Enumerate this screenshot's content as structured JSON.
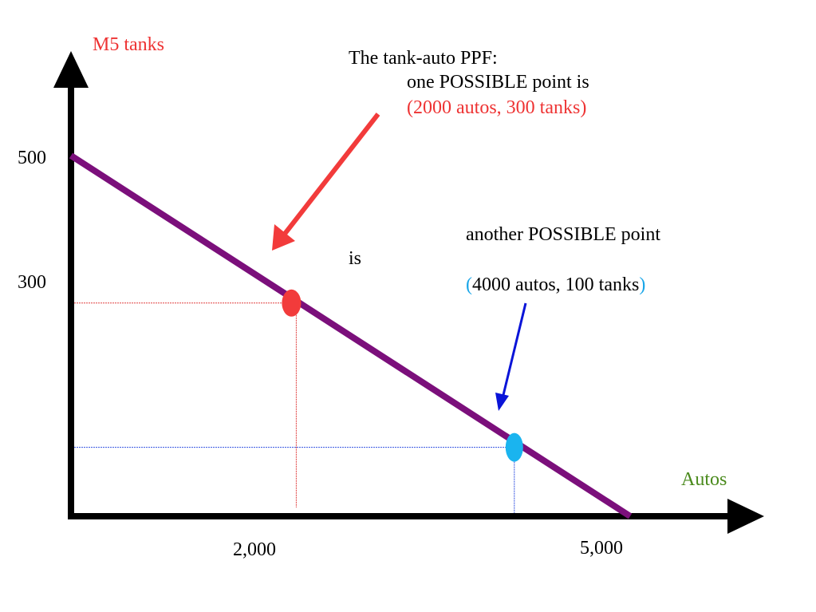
{
  "colors": {
    "ppf_line": "#7b0f7b",
    "axes": "#000000",
    "point1": "#f23b3b",
    "point2": "#1ab4ef",
    "red_text": "#ee3333",
    "blue_arrow": "#0a14d8",
    "cyan_text": "#1aa6e8",
    "autos_label": "#4a8a1c",
    "red_guide": "#e04040",
    "blue_guide": "#3050e0"
  },
  "chart_data": {
    "type": "line",
    "xlabel": "Autos",
    "ylabel": "M5 tanks",
    "x_ticks": [
      {
        "value": 2000,
        "label": "2,000"
      },
      {
        "value": 5000,
        "label": "5,000"
      }
    ],
    "y_ticks": [
      {
        "value": 500,
        "label": "500"
      },
      {
        "value": 300,
        "label": "300"
      }
    ],
    "series": [
      {
        "points": [
          {
            "x": 0,
            "y": 500
          },
          {
            "x": 5000,
            "y": 0
          }
        ]
      }
    ],
    "highlighted_points": [
      {
        "x": 2000,
        "y": 300,
        "color": "#f23b3b"
      },
      {
        "x": 4000,
        "y": 100,
        "color": "#1ab4ef"
      }
    ],
    "annotations": {
      "title_line1": "The tank-auto PPF:",
      "title_line2": "one POSSIBLE point is",
      "title_line3": "(2000 autos, 300 tanks)",
      "second_line1": "another POSSIBLE point",
      "second_is": "is",
      "second_paren_open": "(",
      "second_text": "4000 autos, 100 tanks",
      "second_paren_close": ")"
    }
  }
}
